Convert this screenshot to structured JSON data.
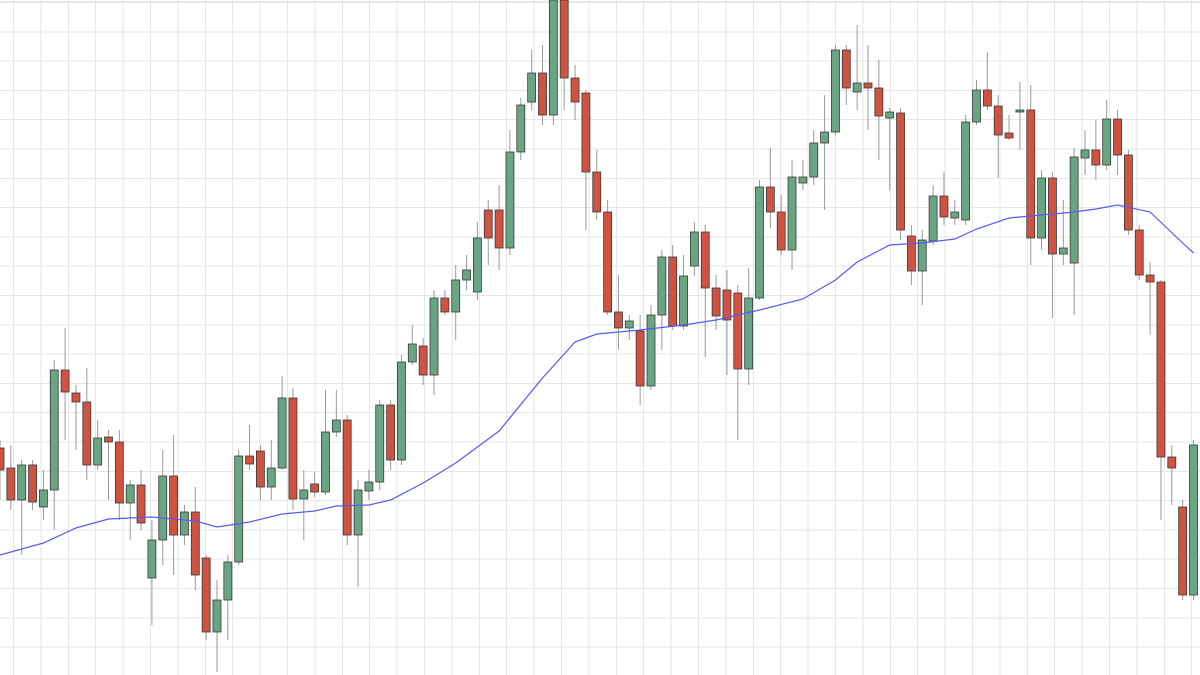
{
  "chart_data": {
    "type": "candlestick",
    "ylim": [
      0,
      675
    ],
    "up_color": "#6aa583",
    "down_color": "#cf5340",
    "edge_color": "#3a3a3a",
    "wick_color": "#999999",
    "open": [
      227,
      207,
      175,
      210,
      168,
      185,
      305,
      282,
      273,
      210,
      238,
      233,
      172,
      190,
      97,
      135,
      199,
      140,
      163,
      117,
      43,
      75,
      113,
      219,
      224,
      188,
      207,
      277,
      176,
      191,
      183,
      243,
      255,
      140,
      184,
      193,
      270,
      215,
      313,
      329,
      300,
      377,
      363,
      395,
      383,
      465,
      465,
      427,
      523,
      573,
      602,
      560,
      675,
      597,
      582,
      503,
      463,
      363,
      347,
      344,
      289,
      360,
      418,
      349,
      409,
      443,
      387,
      385,
      382,
      306,
      377,
      488,
      463,
      425,
      492,
      498,
      532,
      543,
      625,
      583,
      592,
      587,
      557,
      562,
      439,
      404,
      434,
      479,
      457,
      455,
      553,
      585,
      569,
      542,
      563,
      565,
      437,
      497,
      421,
      412,
      517,
      525,
      510,
      556,
      520,
      445,
      400,
      393,
      218,
      168,
      80
    ],
    "high": [
      235,
      230,
      215,
      215,
      205,
      315,
      347,
      290,
      307,
      255,
      245,
      245,
      195,
      205,
      155,
      225,
      240,
      170,
      188,
      120,
      95,
      120,
      225,
      250,
      230,
      235,
      299,
      287,
      205,
      203,
      285,
      285,
      260,
      195,
      205,
      275,
      275,
      320,
      350,
      337,
      385,
      385,
      410,
      420,
      453,
      475,
      490,
      545,
      577,
      625,
      630,
      675,
      675,
      610,
      585,
      525,
      475,
      400,
      360,
      360,
      370,
      425,
      430,
      420,
      453,
      450,
      400,
      405,
      390,
      407,
      495,
      527,
      480,
      515,
      515,
      545,
      580,
      630,
      630,
      650,
      630,
      615,
      567,
      567,
      450,
      445,
      490,
      503,
      475,
      560,
      595,
      623,
      580,
      560,
      593,
      590,
      505,
      503,
      475,
      527,
      545,
      555,
      575,
      565,
      525,
      450,
      413,
      395,
      230,
      175,
      235
    ],
    "low": [
      175,
      165,
      120,
      165,
      155,
      145,
      235,
      225,
      195,
      205,
      175,
      155,
      135,
      145,
      50,
      110,
      100,
      130,
      85,
      35,
      3,
      35,
      110,
      205,
      175,
      175,
      205,
      165,
      135,
      178,
      180,
      238,
      130,
      88,
      175,
      185,
      205,
      210,
      310,
      290,
      280,
      360,
      335,
      385,
      375,
      410,
      405,
      420,
      515,
      565,
      550,
      550,
      565,
      555,
      445,
      455,
      360,
      325,
      335,
      270,
      285,
      325,
      345,
      345,
      399,
      318,
      345,
      300,
      235,
      290,
      375,
      447,
      420,
      405,
      485,
      490,
      465,
      540,
      570,
      565,
      545,
      515,
      485,
      435,
      390,
      370,
      430,
      450,
      450,
      450,
      550,
      565,
      497,
      535,
      525,
      410,
      425,
      357,
      410,
      360,
      500,
      495,
      505,
      500,
      440,
      395,
      340,
      155,
      170,
      75,
      75
    ],
    "close": [
      205,
      175,
      210,
      173,
      185,
      305,
      283,
      273,
      210,
      237,
      233,
      172,
      190,
      152,
      135,
      199,
      140,
      163,
      100,
      43,
      75,
      113,
      219,
      211,
      188,
      207,
      277,
      176,
      185,
      183,
      243,
      255,
      140,
      185,
      193,
      270,
      215,
      313,
      331,
      300,
      377,
      363,
      395,
      405,
      437,
      437,
      427,
      523,
      570,
      602,
      560,
      675,
      597,
      573,
      503,
      463,
      363,
      347,
      354,
      289,
      360,
      418,
      349,
      399,
      443,
      387,
      359,
      355,
      306,
      377,
      488,
      463,
      425,
      498,
      498,
      532,
      543,
      625,
      587,
      592,
      587,
      559,
      563,
      445,
      404,
      435,
      479,
      458,
      463,
      553,
      585,
      569,
      540,
      537,
      565,
      437,
      497,
      421,
      427,
      518,
      525,
      510,
      556,
      520,
      445,
      400,
      393,
      218,
      207,
      80,
      230
    ],
    "series": [
      {
        "color": "#5a5af0",
        "x": [
          0,
          4,
          7,
          10,
          14,
          18,
          20,
          23,
          26,
          29,
          31,
          34,
          36,
          39,
          42,
          46,
          50,
          53,
          55,
          59,
          63,
          66,
          70,
          74,
          77,
          79,
          82,
          85,
          88,
          90,
          93,
          96,
          99,
          101,
          103,
          106,
          109,
          110
        ],
        "values": [
          120,
          132,
          147,
          156,
          158,
          154,
          148,
          153,
          161,
          164,
          169,
          170,
          175,
          192,
          212,
          244,
          297,
          333,
          341,
          345,
          350,
          355,
          365,
          376,
          395,
          413,
          430,
          432,
          436,
          446,
          457,
          460,
          463,
          466,
          470,
          463,
          432,
          422
        ]
      }
    ]
  }
}
